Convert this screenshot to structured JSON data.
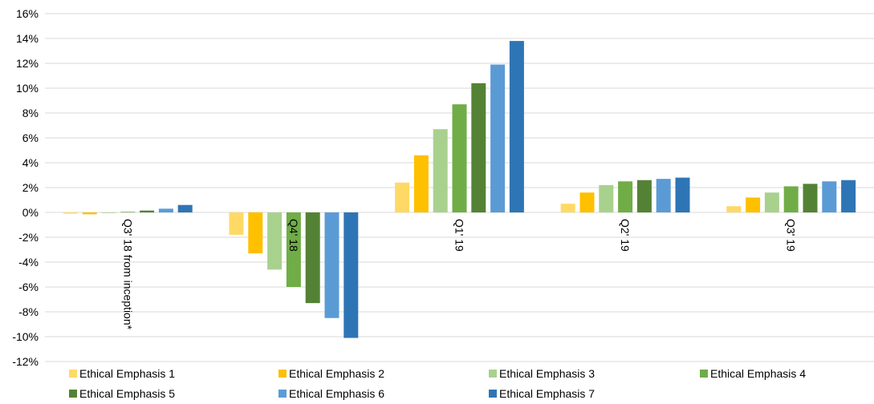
{
  "chart_data": {
    "type": "bar",
    "categories": [
      "Q3' 18 from inception*",
      "Q4' 18",
      "Q1' 19",
      "Q2' 19",
      "Q3' 19"
    ],
    "series": [
      {
        "name": "Ethical Emphasis 1",
        "color": "#FFD966",
        "values": [
          -0.1,
          -1.8,
          2.4,
          0.7,
          0.5
        ]
      },
      {
        "name": "Ethical Emphasis 2",
        "color": "#FFC000",
        "values": [
          -0.15,
          -3.3,
          4.6,
          1.6,
          1.2
        ]
      },
      {
        "name": "Ethical Emphasis 3",
        "color": "#A9D18E",
        "values": [
          -0.05,
          -4.6,
          6.7,
          2.2,
          1.6
        ]
      },
      {
        "name": "Ethical Emphasis 4",
        "color": "#70AD47",
        "values": [
          0.05,
          -6.0,
          8.7,
          2.5,
          2.1
        ]
      },
      {
        "name": "Ethical Emphasis 5",
        "color": "#548235",
        "values": [
          0.15,
          -7.3,
          10.4,
          2.6,
          2.3
        ]
      },
      {
        "name": "Ethical Emphasis 6",
        "color": "#5B9BD5",
        "values": [
          0.3,
          -8.5,
          11.9,
          2.7,
          2.5
        ]
      },
      {
        "name": "Ethical Emphasis 7",
        "color": "#2E75B6",
        "values": [
          0.6,
          -10.1,
          13.8,
          2.8,
          2.6
        ]
      }
    ],
    "ylim": [
      -12,
      16
    ],
    "yticks": [
      -12,
      -10,
      -8,
      -6,
      -4,
      -2,
      0,
      2,
      4,
      6,
      8,
      10,
      12,
      14,
      16
    ],
    "ytick_format": "%",
    "grid": true,
    "legend_position": "bottom"
  }
}
